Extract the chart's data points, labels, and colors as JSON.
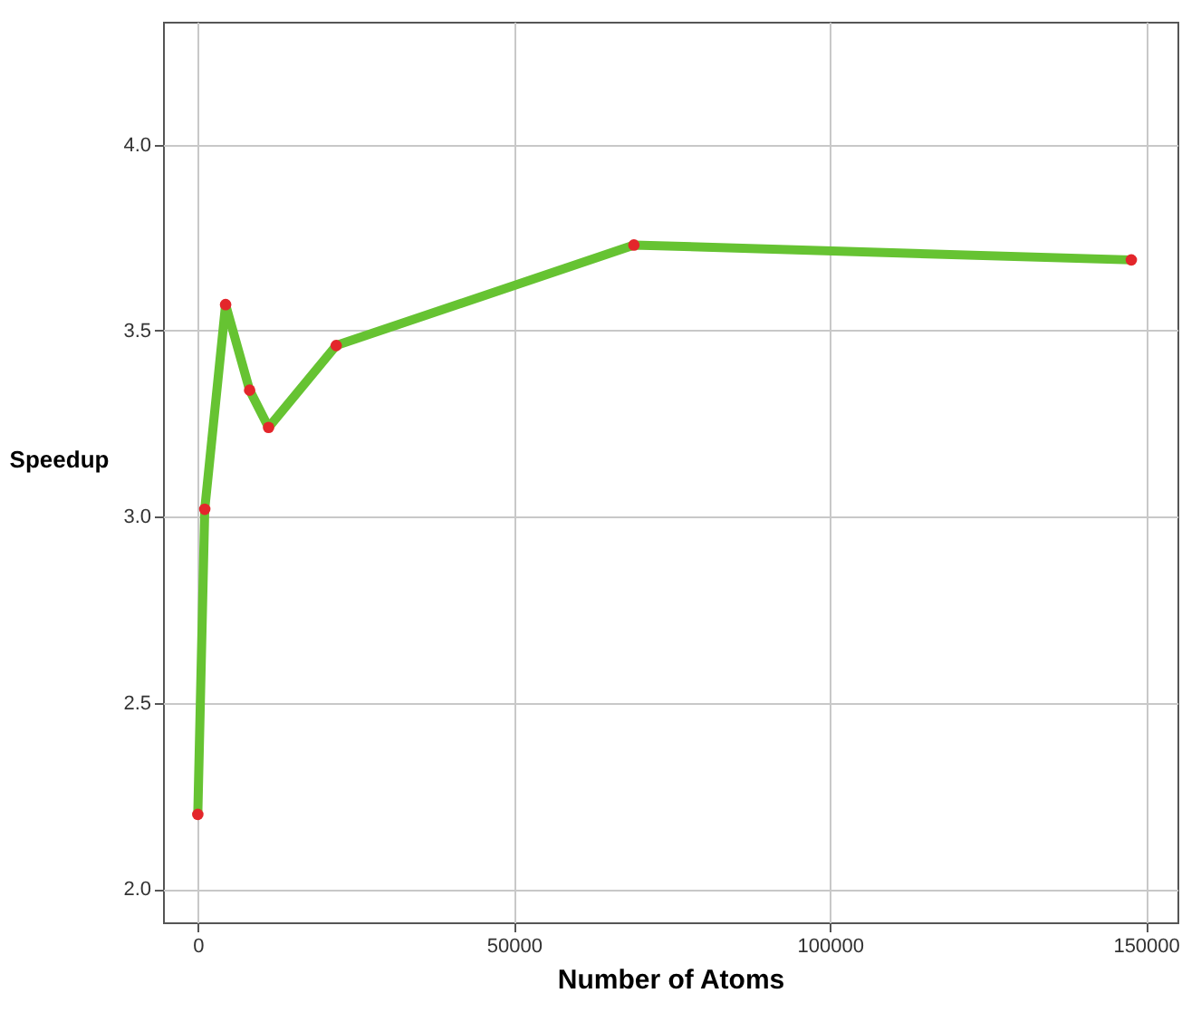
{
  "chart_data": {
    "type": "line",
    "xlabel": "Number of Atoms",
    "ylabel": "Speedup",
    "x": [
      0,
      1100,
      4400,
      8200,
      11200,
      21900,
      69000,
      147700
    ],
    "series": [
      {
        "color": "#66c332",
        "values": [
          2.2,
          3.02,
          3.57,
          3.34,
          3.24,
          3.46,
          3.73,
          3.69
        ]
      }
    ],
    "xlim": [
      -5500,
      155000
    ],
    "xticks": [
      0,
      50000,
      100000,
      150000
    ],
    "ylim": [
      1.91,
      4.33
    ],
    "yticks": [
      {
        "value": 2,
        "label": "2.0"
      },
      2.5,
      {
        "value": 3,
        "label": "3.0"
      },
      3.5,
      {
        "value": 4,
        "label": "4.0"
      }
    ],
    "grid": true,
    "marker": "circle",
    "line_style": "solid"
  }
}
